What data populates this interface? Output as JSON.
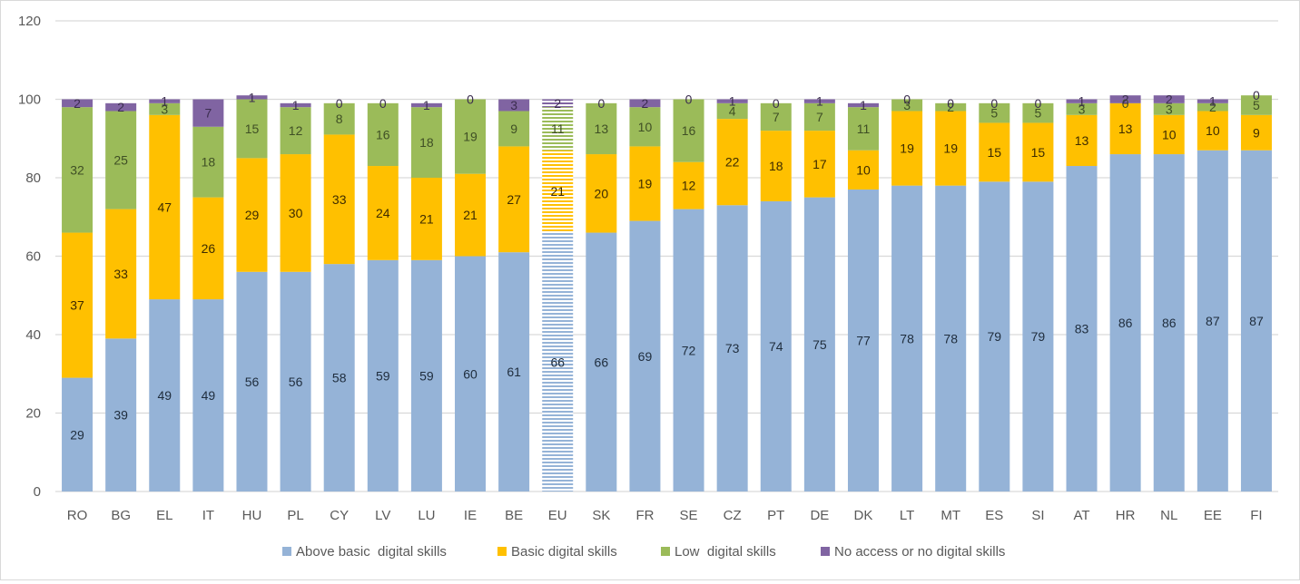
{
  "chart_data": {
    "type": "bar",
    "stacked": true,
    "title": "",
    "xlabel": "",
    "ylabel": "",
    "ylim": [
      0,
      120
    ],
    "yticks": [
      0,
      20,
      40,
      60,
      80,
      100,
      120
    ],
    "grid": true,
    "legend_position": "bottom",
    "highlight_category": "EU",
    "categories": [
      "RO",
      "BG",
      "EL",
      "IT",
      "HU",
      "PL",
      "CY",
      "LV",
      "LU",
      "IE",
      "BE",
      "EU",
      "SK",
      "FR",
      "SE",
      "CZ",
      "PT",
      "DE",
      "DK",
      "LT",
      "MT",
      "ES",
      "SI",
      "AT",
      "HR",
      "NL",
      "EE",
      "FI"
    ],
    "series": [
      {
        "name": "Above basic  digital skills",
        "color": "#95b3d7",
        "label_color": "#1f2d3d",
        "values": [
          29,
          39,
          49,
          49,
          56,
          56,
          58,
          59,
          59,
          60,
          61,
          66,
          66,
          69,
          72,
          73,
          74,
          75,
          77,
          78,
          78,
          79,
          79,
          83,
          86,
          86,
          87,
          87
        ]
      },
      {
        "name": "Basic digital skills",
        "color": "#ffc000",
        "label_color": "#3d2b00",
        "values": [
          37,
          33,
          47,
          26,
          29,
          30,
          33,
          24,
          21,
          21,
          27,
          21,
          20,
          19,
          12,
          22,
          18,
          17,
          10,
          19,
          19,
          15,
          15,
          13,
          13,
          10,
          10,
          9
        ]
      },
      {
        "name": "Low  digital skills",
        "color": "#9bbb59",
        "label_color": "#3f4f25",
        "values": [
          32,
          25,
          3,
          18,
          15,
          12,
          8,
          16,
          18,
          19,
          9,
          11,
          13,
          10,
          16,
          4,
          7,
          7,
          11,
          3,
          2,
          5,
          5,
          3,
          0,
          3,
          2,
          5
        ]
      },
      {
        "name": "No access or no digital skills",
        "color": "#8064a2",
        "label_color": "#3b2d4f",
        "values": [
          2,
          2,
          1,
          7,
          1,
          1,
          0,
          0,
          1,
          0,
          3,
          2,
          0,
          2,
          0,
          1,
          0,
          1,
          1,
          0,
          0,
          0,
          0,
          1,
          2,
          2,
          1,
          0
        ]
      }
    ]
  }
}
